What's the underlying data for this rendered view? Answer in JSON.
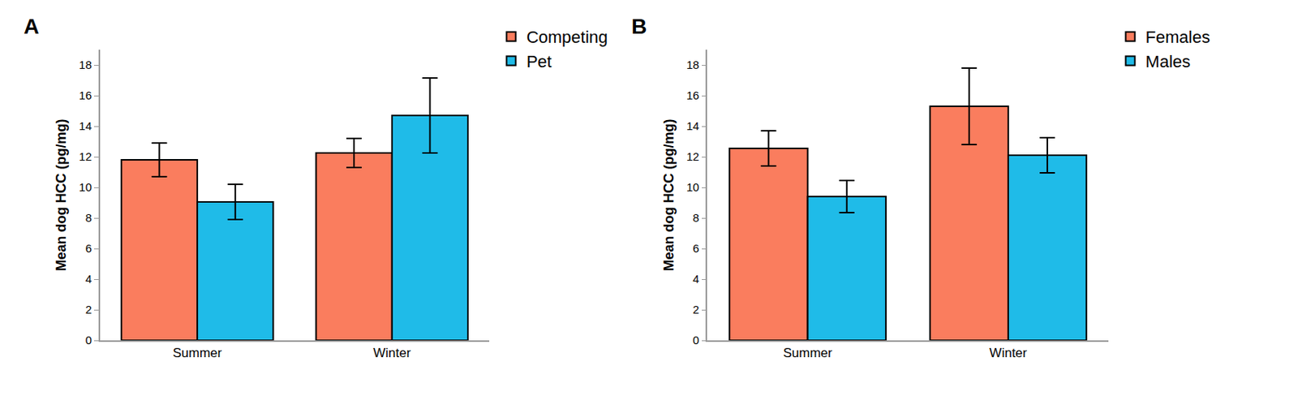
{
  "chart_data": [
    {
      "type": "bar",
      "title": "A",
      "y_label": "Mean dog HCC (pg/mg)",
      "categories": [
        "Summer",
        "Winter"
      ],
      "series": [
        {
          "name": "Competing",
          "color": "#fa7d5e",
          "values": [
            11.8,
            12.25
          ],
          "errors": [
            1.1,
            0.95
          ]
        },
        {
          "name": "Pet",
          "color": "#1fbbe8",
          "values": [
            9.05,
            14.7
          ],
          "errors": [
            1.15,
            2.45
          ]
        }
      ],
      "ylim": [
        0,
        19
      ],
      "yticks": [
        0,
        2,
        4,
        6,
        8,
        10,
        12,
        14,
        16,
        18
      ],
      "grid": false,
      "legend": "upper right"
    },
    {
      "type": "bar",
      "title": "B",
      "y_label": "Mean dog HCC (pg/mg)",
      "categories": [
        "Summer",
        "Winter"
      ],
      "series": [
        {
          "name": "Females",
          "color": "#fa7d5e",
          "values": [
            12.55,
            15.3
          ],
          "errors": [
            1.15,
            2.5
          ]
        },
        {
          "name": "Males",
          "color": "#1fbbe8",
          "values": [
            9.4,
            12.1
          ],
          "errors": [
            1.05,
            1.15
          ]
        }
      ],
      "ylim": [
        0,
        19
      ],
      "yticks": [
        0,
        2,
        4,
        6,
        8,
        10,
        12,
        14,
        16,
        18
      ],
      "grid": false,
      "legend": "upper right"
    }
  ]
}
